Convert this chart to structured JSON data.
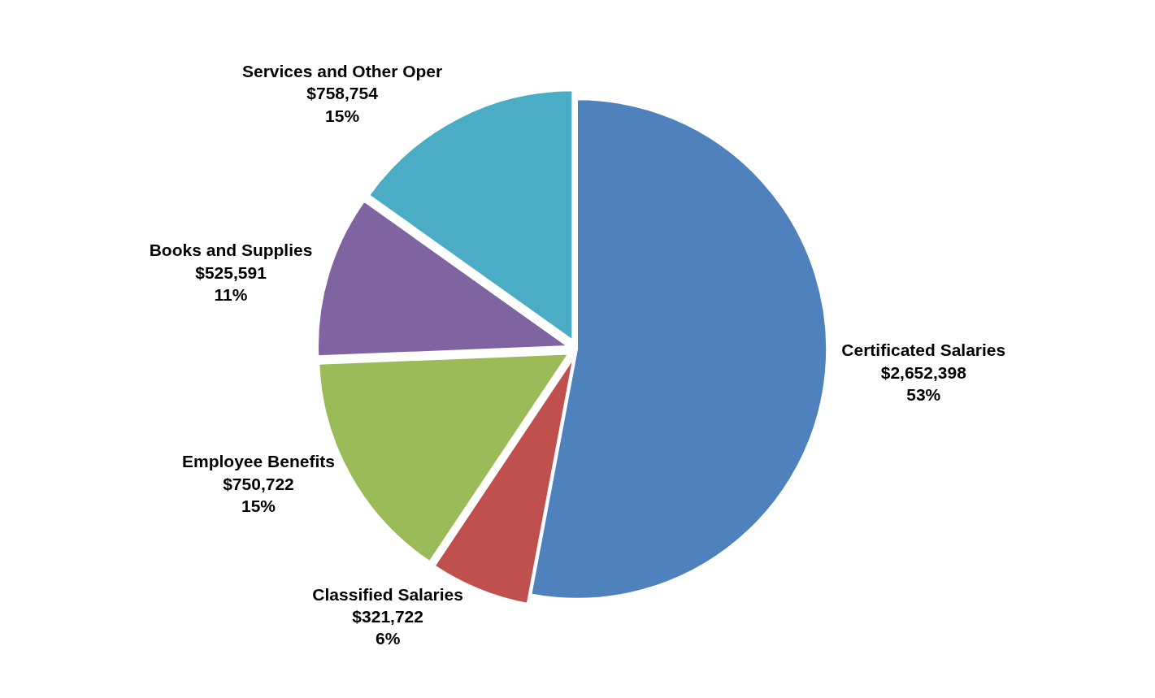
{
  "chart_data": {
    "type": "pie",
    "categories": [
      "Certificated Salaries",
      "Classified Salaries",
      "Employee Benefits",
      "Books and Supplies",
      "Services and Other Oper"
    ],
    "values": [
      2652398,
      321722,
      750722,
      525591,
      758754
    ],
    "value_labels": [
      "$2,652,398\n53%",
      "$321,722\n6%",
      "$750,722\n15%",
      "$525,591\n11%",
      "$758,754\n15%"
    ],
    "colors": [
      "#4f81bd",
      "#c0504d",
      "#9bbb59",
      "#8064a2",
      "#4bacc6"
    ],
    "legend": false
  }
}
